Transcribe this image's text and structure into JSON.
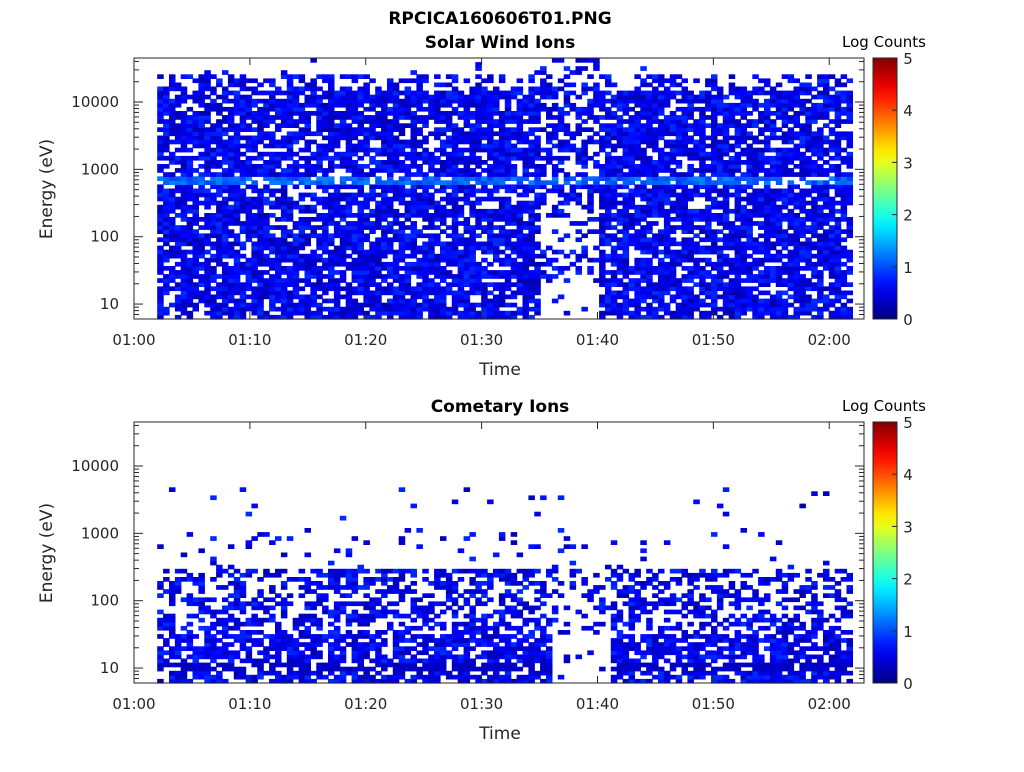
{
  "figure_title": "RPCICA160606T01.PNG",
  "chart_data": [
    {
      "type": "heatmap",
      "title": "Solar Wind Ions",
      "xlabel": "Time",
      "ylabel": "Energy (eV)",
      "x_ticks": [
        "01:00",
        "01:10",
        "01:20",
        "01:30",
        "01:40",
        "01:50",
        "02:00"
      ],
      "y_ticks": [
        "10",
        "100",
        "1000",
        "10000"
      ],
      "y_scale": "log",
      "ylim": [
        6,
        45000
      ],
      "xlim": [
        "01:00",
        "02:03"
      ],
      "data_span": [
        "01:02",
        "02:02"
      ],
      "colorbar": {
        "label": "Log Counts",
        "ticks": [
          "0",
          "1",
          "2",
          "3",
          "4",
          "5"
        ],
        "range": [
          0,
          5
        ],
        "colormap": "jet"
      },
      "notes": "Dense low-count (0-1) coverage from ~6 eV to ~20000 eV; enhanced band near 650 eV; data gap around 01:36-01:40",
      "peak_band": {
        "energy": 650,
        "log_counts": 1.3
      },
      "gaps": [
        [
          "01:35",
          "01:40"
        ]
      ]
    },
    {
      "type": "heatmap",
      "title": "Cometary Ions",
      "xlabel": "Time",
      "ylabel": "Energy (eV)",
      "x_ticks": [
        "01:00",
        "01:10",
        "01:20",
        "01:30",
        "01:40",
        "01:50",
        "02:00"
      ],
      "y_ticks": [
        "10",
        "100",
        "1000",
        "10000"
      ],
      "y_scale": "log",
      "ylim": [
        6,
        45000
      ],
      "xlim": [
        "01:00",
        "02:03"
      ],
      "data_span": [
        "01:02",
        "02:02"
      ],
      "colorbar": {
        "label": "Log Counts",
        "ticks": [
          "0",
          "1",
          "2",
          "3",
          "4",
          "5"
        ],
        "range": [
          0,
          5
        ],
        "colormap": "jet"
      },
      "notes": "Low-count (0-1) coverage mostly below ~300 eV with sparse points up to ~4000 eV",
      "peak_band": {
        "energy": 10,
        "log_counts": 0.4
      },
      "gaps": [
        [
          "01:36",
          "01:41"
        ]
      ]
    }
  ]
}
